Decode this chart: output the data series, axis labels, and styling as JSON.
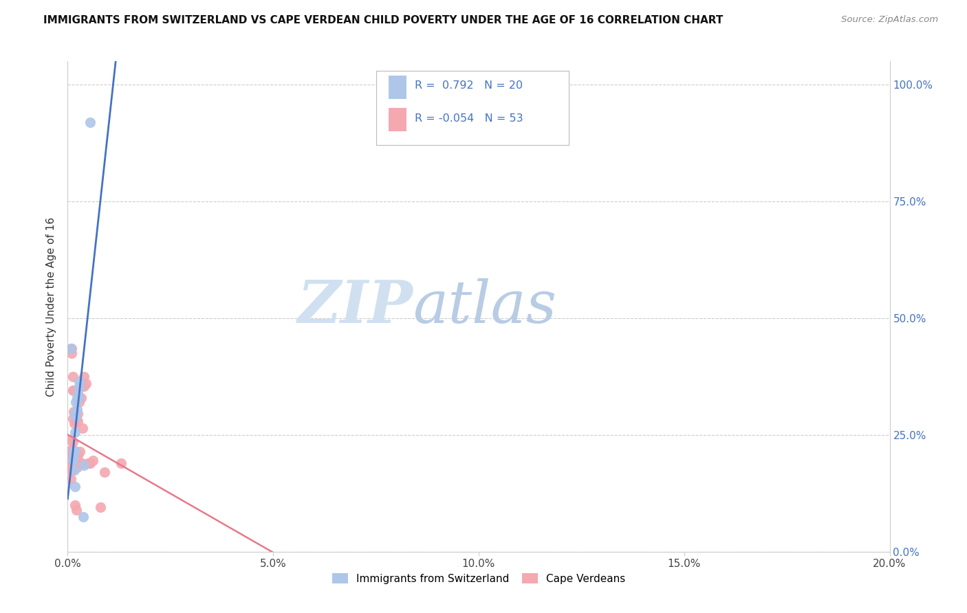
{
  "title": "IMMIGRANTS FROM SWITZERLAND VS CAPE VERDEAN CHILD POVERTY UNDER THE AGE OF 16 CORRELATION CHART",
  "source": "Source: ZipAtlas.com",
  "ylabel": "Child Poverty Under the Age of 16",
  "xlim": [
    0.0,
    0.2
  ],
  "ylim": [
    0.0,
    1.05
  ],
  "yticks": [
    0.0,
    0.25,
    0.5,
    0.75,
    1.0
  ],
  "ytick_labels": [
    "0.0%",
    "25.0%",
    "50.0%",
    "75.0%",
    "100.0%"
  ],
  "xticks": [
    0.0,
    0.05,
    0.1,
    0.15,
    0.2
  ],
  "xtick_labels": [
    "0.0%",
    "5.0%",
    "10.0%",
    "15.0%",
    "20.0%"
  ],
  "r_swiss": 0.792,
  "n_swiss": 20,
  "r_cape": -0.054,
  "n_cape": 53,
  "swiss_color": "#aec6e8",
  "cape_color": "#f4a8b0",
  "swiss_line_color": "#4472c4",
  "cape_line_color": "#e8788a",
  "watermark_zip": "ZIP",
  "watermark_atlas": "atlas",
  "watermark_color": "#d0e0f0",
  "swiss_points": [
    [
      0.0008,
      0.435
    ],
    [
      0.0012,
      0.2
    ],
    [
      0.0013,
      0.195
    ],
    [
      0.0015,
      0.215
    ],
    [
      0.0016,
      0.175
    ],
    [
      0.0017,
      0.215
    ],
    [
      0.0018,
      0.255
    ],
    [
      0.0018,
      0.295
    ],
    [
      0.002,
      0.29
    ],
    [
      0.002,
      0.32
    ],
    [
      0.0022,
      0.305
    ],
    [
      0.0023,
      0.33
    ],
    [
      0.0025,
      0.34
    ],
    [
      0.0026,
      0.33
    ],
    [
      0.0027,
      0.365
    ],
    [
      0.0028,
      0.355
    ],
    [
      0.0018,
      0.14
    ],
    [
      0.0038,
      0.075
    ],
    [
      0.004,
      0.185
    ],
    [
      0.0054,
      0.92
    ]
  ],
  "cape_points": [
    [
      0.0005,
      0.205
    ],
    [
      0.0006,
      0.175
    ],
    [
      0.0007,
      0.215
    ],
    [
      0.0007,
      0.155
    ],
    [
      0.0008,
      0.24
    ],
    [
      0.0008,
      0.185
    ],
    [
      0.0009,
      0.215
    ],
    [
      0.0009,
      0.435
    ],
    [
      0.001,
      0.19
    ],
    [
      0.001,
      0.205
    ],
    [
      0.001,
      0.425
    ],
    [
      0.0011,
      0.22
    ],
    [
      0.0011,
      0.175
    ],
    [
      0.0012,
      0.345
    ],
    [
      0.0012,
      0.285
    ],
    [
      0.0013,
      0.205
    ],
    [
      0.0013,
      0.235
    ],
    [
      0.0013,
      0.375
    ],
    [
      0.0014,
      0.205
    ],
    [
      0.0014,
      0.3
    ],
    [
      0.0015,
      0.345
    ],
    [
      0.0015,
      0.2
    ],
    [
      0.0015,
      0.195
    ],
    [
      0.0016,
      0.275
    ],
    [
      0.0016,
      0.195
    ],
    [
      0.0017,
      0.1
    ],
    [
      0.0018,
      0.195
    ],
    [
      0.0019,
      0.195
    ],
    [
      0.0019,
      0.215
    ],
    [
      0.002,
      0.28
    ],
    [
      0.0021,
      0.09
    ],
    [
      0.0022,
      0.195
    ],
    [
      0.0023,
      0.18
    ],
    [
      0.0024,
      0.295
    ],
    [
      0.0025,
      0.205
    ],
    [
      0.0025,
      0.28
    ],
    [
      0.0026,
      0.19
    ],
    [
      0.0028,
      0.32
    ],
    [
      0.0028,
      0.19
    ],
    [
      0.003,
      0.215
    ],
    [
      0.0032,
      0.355
    ],
    [
      0.0033,
      0.33
    ],
    [
      0.0035,
      0.19
    ],
    [
      0.0036,
      0.265
    ],
    [
      0.004,
      0.355
    ],
    [
      0.004,
      0.375
    ],
    [
      0.0045,
      0.36
    ],
    [
      0.005,
      0.19
    ],
    [
      0.0055,
      0.19
    ],
    [
      0.0062,
      0.195
    ],
    [
      0.008,
      0.095
    ],
    [
      0.009,
      0.17
    ],
    [
      0.013,
      0.19
    ]
  ]
}
